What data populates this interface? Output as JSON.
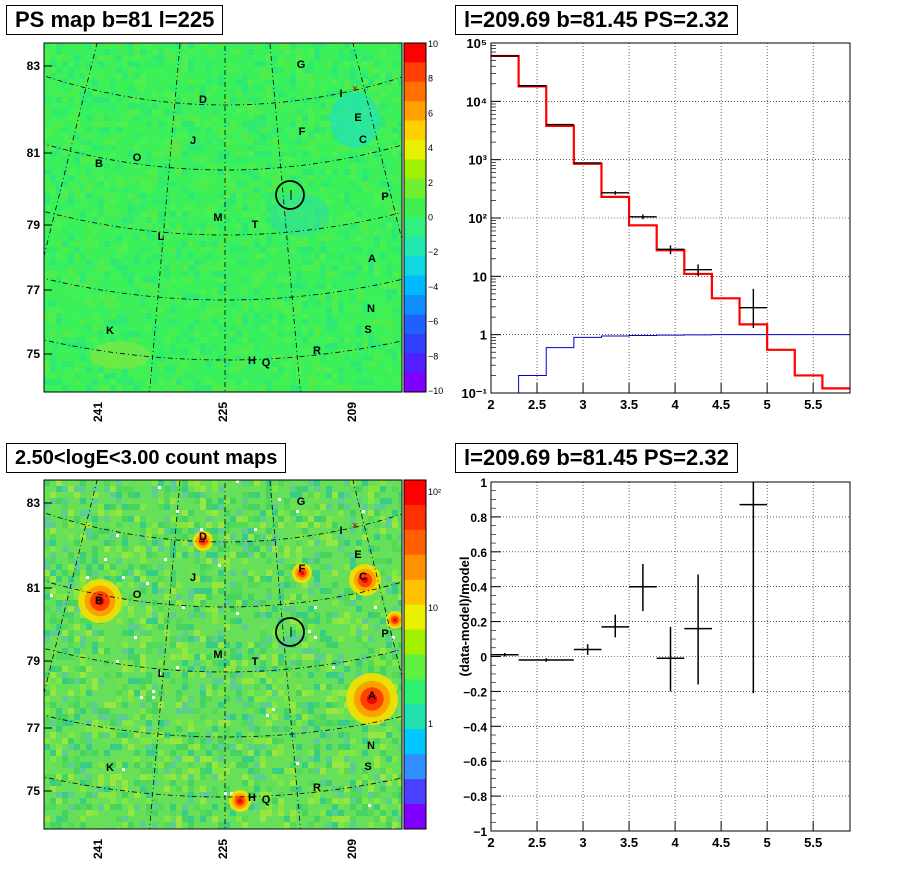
{
  "panels": {
    "psmap": {
      "title": "PS map b=81 l=225",
      "y_ticks": [
        "83",
        "81",
        "79",
        "77",
        "75"
      ],
      "x_ticks": [
        "241",
        "225",
        "209"
      ],
      "colorbar_ticks": [
        "10",
        "8",
        "6",
        "4",
        "2",
        "0",
        "−2",
        "−4",
        "−6",
        "−8",
        "−10"
      ],
      "source_labels": [
        "G",
        "I",
        "D",
        "E",
        "C",
        "J",
        "F",
        "B",
        "O",
        "P",
        "M",
        "T",
        "L",
        "A",
        "N",
        "K",
        "S",
        "R",
        "H",
        "Q"
      ]
    },
    "spectrum": {
      "title": "l=209.69 b=81.45 PS=2.32",
      "y_ticks": [
        "10⁵",
        "10⁴",
        "10³",
        "10²",
        "10",
        "1",
        "10⁻¹"
      ],
      "x_ticks": [
        "2",
        "2.5",
        "3",
        "3.5",
        "4",
        "4.5",
        "5",
        "5.5"
      ]
    },
    "countmap": {
      "title": "2.50<logE<3.00 count maps",
      "y_ticks": [
        "83",
        "81",
        "79",
        "77",
        "75"
      ],
      "x_ticks": [
        "241",
        "225",
        "209"
      ],
      "colorbar_ticks": [
        "10²",
        "10",
        "1"
      ],
      "source_labels": [
        "G",
        "I",
        "D",
        "E",
        "C",
        "J",
        "F",
        "B",
        "O",
        "P",
        "M",
        "T",
        "L",
        "A",
        "N",
        "K",
        "S",
        "R",
        "H",
        "Q"
      ]
    },
    "residual": {
      "title": "l=209.69 b=81.45 PS=2.32",
      "ylabel": "(data-model)/model",
      "y_ticks": [
        "1",
        "0.8",
        "0.6",
        "0.4",
        "0.2",
        "0",
        "−0.2",
        "−0.4",
        "−0.6",
        "−0.8",
        "−1"
      ],
      "x_ticks": [
        "2",
        "2.5",
        "3",
        "3.5",
        "4",
        "4.5",
        "5",
        "5.5"
      ]
    }
  },
  "colors": {
    "model": "#ff0000",
    "background": "#0000cc",
    "data": "#000000"
  },
  "chart_data": [
    {
      "type": "heatmap",
      "title": "PS map b=81 l=225",
      "y_axis_ticks": [
        83,
        81,
        79,
        77,
        75
      ],
      "x_axis_ticks": [
        241,
        225,
        209
      ],
      "color_range": [
        -10,
        10
      ],
      "sources": [
        "G",
        "I",
        "D",
        "E",
        "C",
        "J",
        "F",
        "B",
        "O",
        "P",
        "M",
        "T",
        "L",
        "A",
        "N",
        "K",
        "S",
        "R",
        "H",
        "Q"
      ]
    },
    {
      "type": "line",
      "title": "l=209.69 b=81.45 PS=2.32",
      "xlim": [
        2,
        5.9
      ],
      "ylim": [
        0.1,
        100000
      ],
      "y_scale": "log",
      "grid": true,
      "bin_edges": [
        2.0,
        2.3,
        2.6,
        2.9,
        3.2,
        3.5,
        3.8,
        4.1,
        4.4,
        4.7,
        5.0,
        5.3,
        5.6,
        5.9
      ],
      "series": [
        {
          "values": [
            60000,
            18000,
            3800,
            850,
            230,
            75,
            28,
            11,
            4.2,
            1.5,
            0.55,
            0.2,
            0.12
          ]
        },
        {
          "values": [
            0.05,
            0.2,
            0.6,
            0.9,
            0.95,
            0.97,
            0.98,
            0.99,
            1.0,
            1.0,
            1.0,
            1.0,
            1.0
          ]
        },
        {
          "x": [
            2.15,
            2.45,
            2.75,
            3.05,
            3.35,
            3.65,
            3.95,
            4.25,
            4.85
          ],
          "values": [
            60000,
            18500,
            4000,
            880,
            270,
            105,
            29,
            13,
            2.9
          ],
          "yerr_low": [
            0,
            0,
            0,
            0,
            20,
            10,
            5,
            3,
            1.6
          ],
          "yerr_high": [
            0,
            0,
            0,
            0,
            20,
            10,
            5,
            3,
            3.2
          ]
        }
      ]
    },
    {
      "type": "heatmap",
      "title": "2.50<logE<3.00 count maps",
      "y_axis_ticks": [
        83,
        81,
        79,
        77,
        75
      ],
      "x_axis_ticks": [
        241,
        225,
        209
      ],
      "color_scale": "log",
      "sources": [
        "G",
        "I",
        "D",
        "E",
        "C",
        "J",
        "F",
        "B",
        "O",
        "P",
        "M",
        "T",
        "L",
        "A",
        "N",
        "K",
        "S",
        "R",
        "H",
        "Q"
      ]
    },
    {
      "type": "scatter",
      "title": "l=209.69 b=81.45 PS=2.32",
      "ylabel": "(data-model)/model",
      "xlim": [
        2,
        5.9
      ],
      "ylim": [
        -1,
        1
      ],
      "grid": true,
      "points": [
        {
          "x": 2.15,
          "xerr": 0.15,
          "y": 0.01,
          "yerr_low": 0.01,
          "yerr_high": 0.01
        },
        {
          "x": 2.6,
          "xerr": 0.3,
          "y": -0.02,
          "yerr_low": 0.01,
          "yerr_high": 0.01
        },
        {
          "x": 3.05,
          "xerr": 0.15,
          "y": 0.04,
          "yerr_low": 0.03,
          "yerr_high": 0.03
        },
        {
          "x": 3.35,
          "xerr": 0.15,
          "y": 0.17,
          "yerr_low": 0.06,
          "yerr_high": 0.07
        },
        {
          "x": 3.65,
          "xerr": 0.15,
          "y": 0.4,
          "yerr_low": 0.14,
          "yerr_high": 0.13
        },
        {
          "x": 3.95,
          "xerr": 0.15,
          "y": -0.01,
          "yerr_low": 0.19,
          "yerr_high": 0.18
        },
        {
          "x": 4.25,
          "xerr": 0.15,
          "y": 0.16,
          "yerr_low": 0.32,
          "yerr_high": 0.31
        },
        {
          "x": 4.85,
          "xerr": 0.15,
          "y": 0.87,
          "yerr_low": 1.08,
          "yerr_high": 0.13
        }
      ]
    }
  ]
}
